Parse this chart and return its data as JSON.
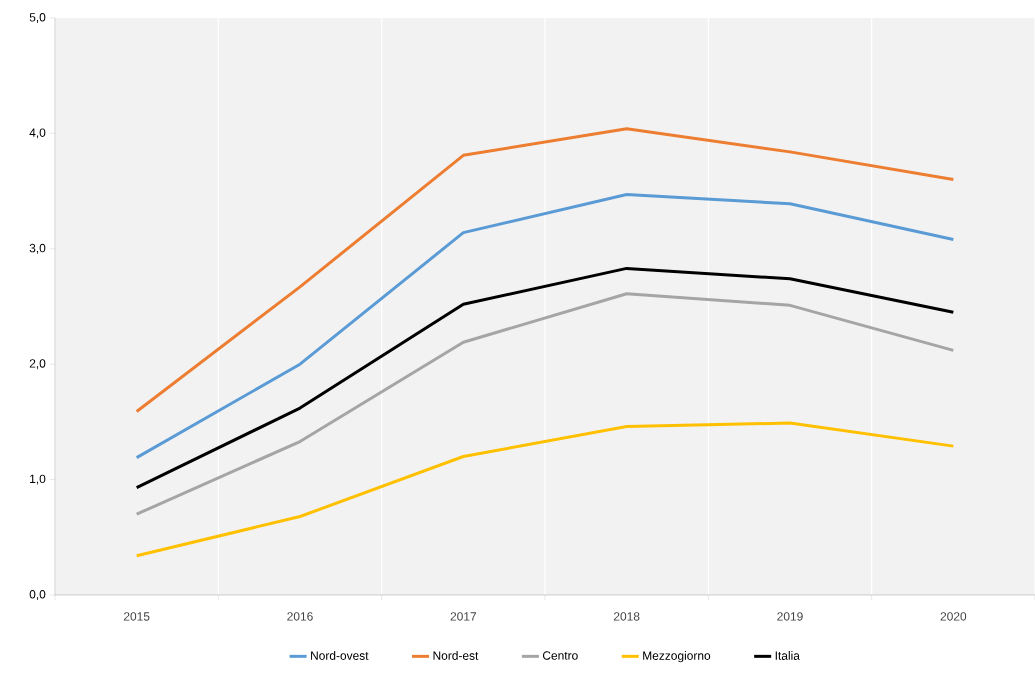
{
  "chart_data": {
    "type": "line",
    "categories": [
      "2015",
      "2016",
      "2017",
      "2018",
      "2019",
      "2020"
    ],
    "series": [
      {
        "name": "Nord-ovest",
        "color": "#5b9bd5",
        "values": [
          1.19,
          2.0,
          3.14,
          3.47,
          3.39,
          3.08
        ]
      },
      {
        "name": "Nord-est",
        "color": "#ed7d31",
        "values": [
          1.59,
          2.67,
          3.81,
          4.04,
          3.84,
          3.6
        ]
      },
      {
        "name": "Centro",
        "color": "#a5a5a5",
        "values": [
          0.7,
          1.33,
          2.19,
          2.61,
          2.51,
          2.12
        ]
      },
      {
        "name": "Mezzogiorno",
        "color": "#ffc000",
        "values": [
          0.34,
          0.68,
          1.2,
          1.46,
          1.49,
          1.29
        ]
      },
      {
        "name": "Italia",
        "color": "#000000",
        "values": [
          0.93,
          1.62,
          2.52,
          2.83,
          2.74,
          2.45
        ]
      }
    ],
    "ylim": [
      0,
      5
    ],
    "yticks": [
      {
        "value": 0,
        "label": "0,0"
      },
      {
        "value": 1,
        "label": "1,0"
      },
      {
        "value": 2,
        "label": "2,0"
      },
      {
        "value": 3,
        "label": "3,0"
      },
      {
        "value": 4,
        "label": "4,0"
      },
      {
        "value": 5,
        "label": "5,0"
      }
    ],
    "grid": "x",
    "legend": "bottom",
    "marker": "none",
    "line_style": "solid"
  }
}
